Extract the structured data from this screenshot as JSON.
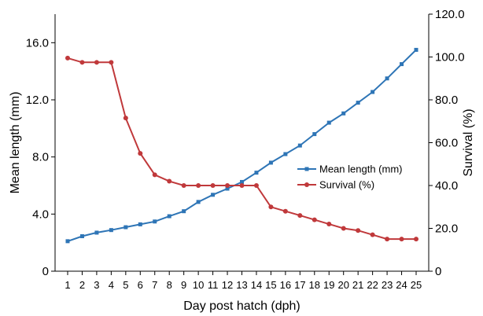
{
  "chart_data": {
    "type": "line",
    "title": "",
    "xlabel": "Day post hatch (dph)",
    "ylabel_left": "Mean length (mm)",
    "ylabel_right": "Survival (%)",
    "x": [
      1,
      2,
      3,
      4,
      5,
      6,
      7,
      8,
      9,
      10,
      11,
      12,
      13,
      14,
      15,
      16,
      17,
      18,
      19,
      20,
      21,
      22,
      23,
      24,
      25
    ],
    "x_tick_labels": [
      "1",
      "2",
      "3",
      "4",
      "5",
      "6",
      "7",
      "8",
      "9",
      "10",
      "11",
      "12",
      "13",
      "14",
      "15",
      "16",
      "17",
      "18",
      "19",
      "20",
      "21",
      "22",
      "23",
      "24",
      "25"
    ],
    "y_left_lim": [
      0,
      18
    ],
    "y_left_ticks": [
      "0",
      "4.0",
      "8.0",
      "12.0",
      "16.0"
    ],
    "y_left_tick_values": [
      0,
      4,
      8,
      12,
      16
    ],
    "y_right_lim": [
      0,
      120
    ],
    "y_right_ticks": [
      "0",
      "20.0",
      "40.0",
      "60.0",
      "80.0",
      "100.0",
      "120.0"
    ],
    "y_right_tick_values": [
      0,
      20,
      40,
      60,
      80,
      100,
      120
    ],
    "grid": false,
    "legend_position": "center-right",
    "series": [
      {
        "name": "Mean length (mm)",
        "axis": "left",
        "color": "#2e75b6",
        "marker": "square",
        "values": [
          2.1,
          2.45,
          2.7,
          2.88,
          3.08,
          3.28,
          3.48,
          3.85,
          4.2,
          4.85,
          5.35,
          5.78,
          6.25,
          6.9,
          7.6,
          8.2,
          8.8,
          9.6,
          10.4,
          11.05,
          11.8,
          12.55,
          13.5,
          14.5,
          15.5
        ]
      },
      {
        "name": "Survival (%)",
        "axis": "right",
        "color": "#c0393b",
        "marker": "circle",
        "values": [
          99.5,
          97.5,
          97.5,
          97.5,
          71.5,
          55,
          45,
          42,
          40,
          40,
          40,
          40,
          40,
          40,
          30,
          28,
          26,
          24,
          22,
          20,
          19,
          17,
          15,
          15,
          15
        ]
      }
    ]
  }
}
